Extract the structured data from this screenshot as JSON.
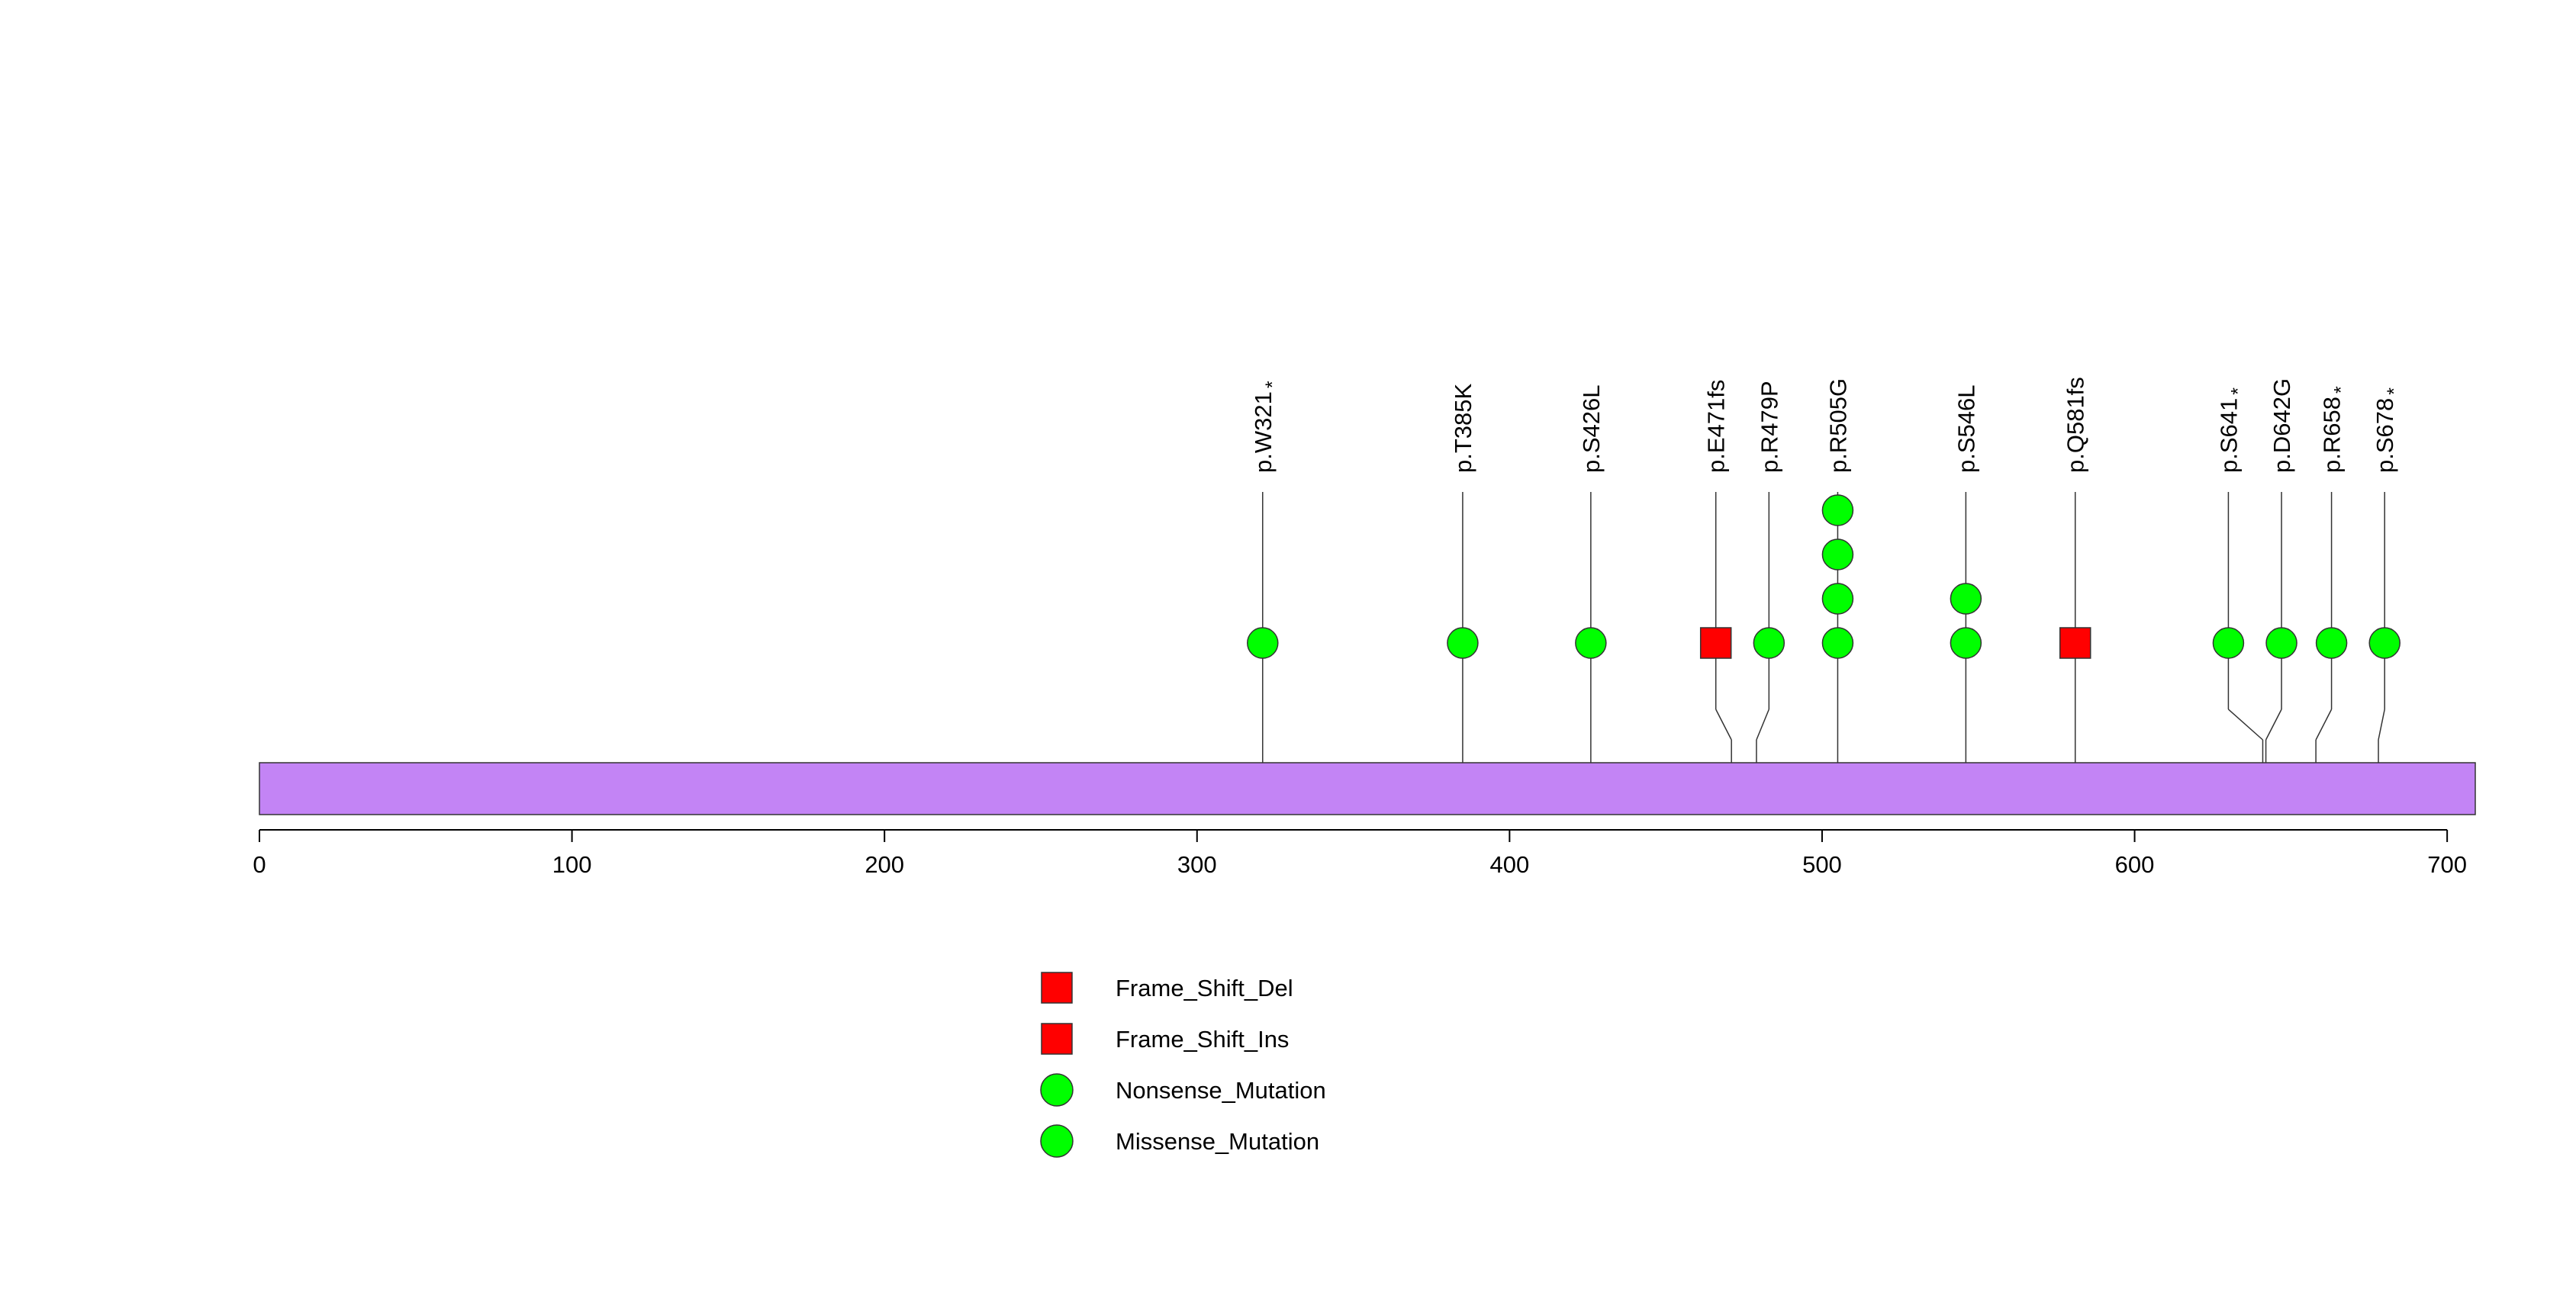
{
  "chart_data": {
    "type": "lollipop",
    "protein_length": 709,
    "xlim": [
      0,
      709
    ],
    "x_ticks": [
      0,
      100,
      200,
      300,
      400,
      500,
      600,
      700
    ],
    "colors": {
      "domain_fill": "#c384f5",
      "frameshift": "#ff0000",
      "point_mutation": "#00ff00",
      "stroke": "#333333"
    },
    "mutations": [
      {
        "label": "p.W321",
        "star": true,
        "position": 321,
        "pin_position": 321,
        "count": 1,
        "shape": "circle"
      },
      {
        "label": "p.T385K",
        "star": false,
        "position": 385,
        "pin_position": 385,
        "count": 1,
        "shape": "circle"
      },
      {
        "label": "p.S426L",
        "star": false,
        "position": 426,
        "pin_position": 426,
        "count": 1,
        "shape": "circle"
      },
      {
        "label": "p.E471fs",
        "star": false,
        "position": 466,
        "pin_position": 471,
        "count": 1,
        "shape": "square"
      },
      {
        "label": "p.R479P",
        "star": false,
        "position": 483,
        "pin_position": 479,
        "count": 1,
        "shape": "circle"
      },
      {
        "label": "p.R505G",
        "star": false,
        "position": 505,
        "pin_position": 505,
        "count": 4,
        "shape": "circle"
      },
      {
        "label": "p.S546L",
        "star": false,
        "position": 546,
        "pin_position": 546,
        "count": 2,
        "shape": "circle"
      },
      {
        "label": "p.Q581fs",
        "star": false,
        "position": 581,
        "pin_position": 581,
        "count": 1,
        "shape": "square"
      },
      {
        "label": "p.S641",
        "star": true,
        "position": 630,
        "pin_position": 641,
        "count": 1,
        "shape": "circle"
      },
      {
        "label": "p.D642G",
        "star": false,
        "position": 647,
        "pin_position": 642,
        "count": 1,
        "shape": "circle"
      },
      {
        "label": "p.R658",
        "star": true,
        "position": 663,
        "pin_position": 658,
        "count": 1,
        "shape": "circle"
      },
      {
        "label": "p.S678",
        "star": true,
        "position": 680,
        "pin_position": 678,
        "count": 1,
        "shape": "circle"
      }
    ],
    "legend": [
      {
        "label": "Frame_Shift_Del",
        "shape": "square",
        "color": "#ff0000"
      },
      {
        "label": "Frame_Shift_Ins",
        "shape": "square",
        "color": "#ff0000"
      },
      {
        "label": "Nonsense_Mutation",
        "shape": "circle",
        "color": "#00ff00"
      },
      {
        "label": "Missense_Mutation",
        "shape": "circle",
        "color": "#00ff00"
      }
    ],
    "star_symbol": "*"
  }
}
